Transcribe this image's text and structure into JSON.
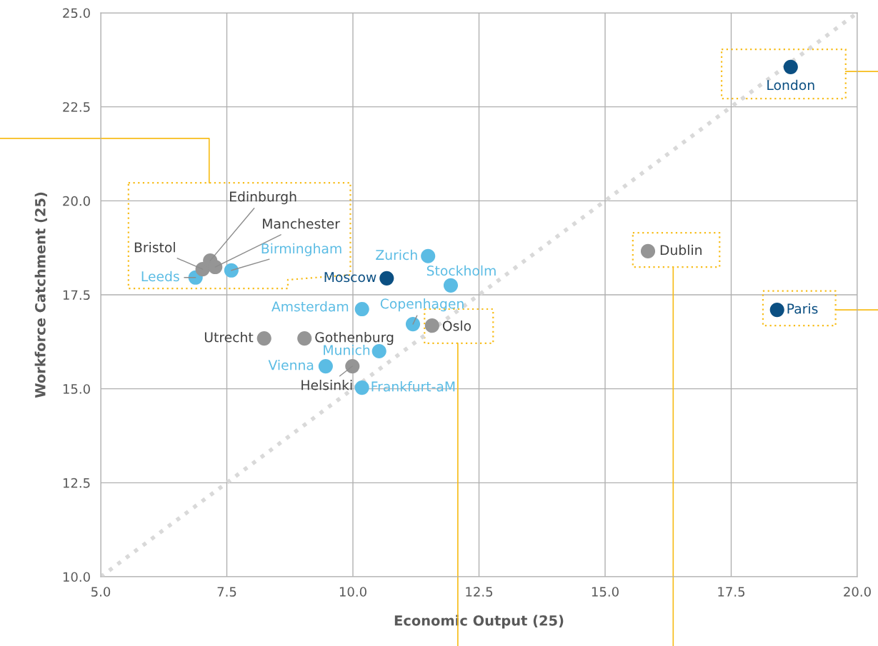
{
  "chart_data": {
    "type": "scatter",
    "xlabel": "Economic Output (25)",
    "ylabel": "Workforce Catchment (25)",
    "xlim": [
      5.0,
      20.0
    ],
    "ylim": [
      10.0,
      25.0
    ],
    "xticks": [
      {
        "value": 5,
        "label": "5.0"
      },
      7.5,
      {
        "value": 10,
        "label": "10.0"
      },
      12.5,
      {
        "value": 15,
        "label": "15.0"
      },
      17.5,
      {
        "value": 20,
        "label": "20.0"
      }
    ],
    "yticks": [
      {
        "value": 10,
        "label": "10.0"
      },
      12.5,
      {
        "value": 15,
        "label": "15.0"
      },
      17.5,
      {
        "value": 20,
        "label": "20.0"
      },
      22.5,
      {
        "value": 25,
        "label": "25.0"
      }
    ],
    "grid": true,
    "marker": "circle",
    "series": [
      {
        "type": "line",
        "marker": "none",
        "color": "#d9d9d9",
        "line_style": "dotted",
        "x": [
          5.0,
          20.0
        ],
        "values": [
          10.0,
          25.0
        ]
      },
      {
        "color": "#0b4f82",
        "x": [
          18.68,
          18.41,
          10.67
        ],
        "values": [
          23.56,
          17.1,
          17.94
        ]
      },
      {
        "color": "#5bbce4",
        "x": [
          11.49,
          11.94,
          10.18,
          11.19,
          10.52,
          9.46,
          10.18,
          6.88,
          7.59
        ],
        "values": [
          18.53,
          17.75,
          17.12,
          16.72,
          16.0,
          15.6,
          15.03,
          17.96,
          18.15
        ]
      },
      {
        "color": "#959595",
        "x": [
          15.85,
          11.57,
          8.24,
          9.04,
          9.99,
          7.02,
          7.17,
          7.27
        ],
        "values": [
          18.66,
          16.68,
          16.34,
          16.34,
          15.6,
          18.18,
          18.41,
          18.24
        ]
      }
    ],
    "annotations": [
      {
        "text": "London",
        "x": 18.68,
        "y": 23.56
      },
      {
        "text": "Paris",
        "x": 18.41,
        "y": 17.1
      },
      {
        "text": "Moscow",
        "x": 10.67,
        "y": 17.94
      },
      {
        "text": "Dublin",
        "x": 15.85,
        "y": 18.66
      },
      {
        "text": "Zurich",
        "x": 11.49,
        "y": 18.53
      },
      {
        "text": "Stockholm",
        "x": 11.94,
        "y": 17.75
      },
      {
        "text": "Amsterdam",
        "x": 10.18,
        "y": 17.12
      },
      {
        "text": "Copenhagen",
        "x": 11.19,
        "y": 16.72
      },
      {
        "text": "Oslo",
        "x": 11.57,
        "y": 16.68
      },
      {
        "text": "Utrecht",
        "x": 8.24,
        "y": 16.34
      },
      {
        "text": "Gothenburg",
        "x": 9.04,
        "y": 16.34
      },
      {
        "text": "Munich",
        "x": 10.52,
        "y": 16.0
      },
      {
        "text": "Vienna",
        "x": 9.46,
        "y": 15.6
      },
      {
        "text": "Helsinki",
        "x": 9.99,
        "y": 15.6
      },
      {
        "text": "Frankfurt-aM",
        "x": 10.18,
        "y": 15.03
      },
      {
        "text": "Leeds",
        "x": 6.88,
        "y": 17.96
      },
      {
        "text": "Bristol",
        "x": 7.02,
        "y": 18.18
      },
      {
        "text": "Edinburgh",
        "x": 7.17,
        "y": 18.41
      },
      {
        "text": "Manchester",
        "x": 7.27,
        "y": 18.24
      },
      {
        "text": "Birmingham",
        "x": 7.59,
        "y": 18.15
      }
    ]
  }
}
